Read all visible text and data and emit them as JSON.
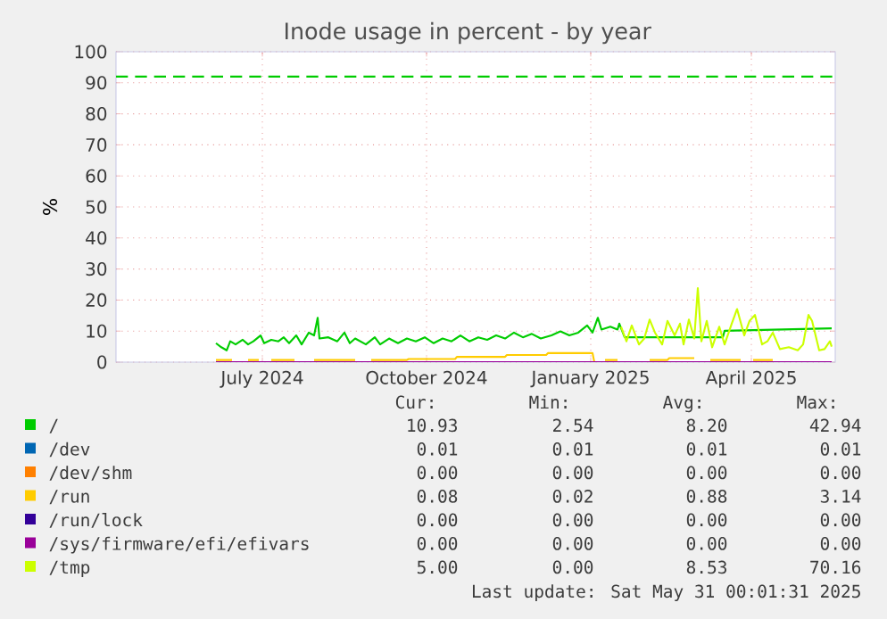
{
  "chart_data": {
    "type": "line",
    "title": "Inode usage in percent - by year",
    "ylabel": "%",
    "xlim": [
      "2024-04-25",
      "2025-06-02"
    ],
    "ylim": [
      0,
      100
    ],
    "xticks": [
      {
        "value": "2024-07-16",
        "label": "July 2024"
      },
      {
        "value": "2024-10-16",
        "label": "October 2024"
      },
      {
        "value": "2025-01-16",
        "label": "January 2025"
      },
      {
        "value": "2025-04-16",
        "label": "April 2025"
      }
    ],
    "yticks": [
      0,
      10,
      20,
      30,
      40,
      50,
      60,
      70,
      80,
      90,
      100
    ],
    "grid": true,
    "legend": "bottom",
    "ref_lines": [
      {
        "axis": "y",
        "value": 92,
        "color": "#00cc00",
        "line_style": "dashed"
      }
    ],
    "series": [
      {
        "name": "/",
        "color": "#00cc00",
        "x": [
          "2024-06-20",
          "2024-06-23",
          "2024-06-26",
          "2024-06-28",
          "2024-07-01",
          "2024-07-05",
          "2024-07-08",
          "2024-07-11",
          "2024-07-15",
          "2024-07-17",
          "2024-07-21",
          "2024-07-25",
          "2024-07-28",
          "2024-07-31",
          "2024-08-04",
          "2024-08-07",
          "2024-08-11",
          "2024-08-14",
          "2024-08-16",
          "2024-08-17",
          "2024-08-22",
          "2024-08-27",
          "2024-08-31",
          "2024-09-03",
          "2024-09-06",
          "2024-09-12",
          "2024-09-17",
          "2024-09-20",
          "2024-09-25",
          "2024-09-30",
          "2024-10-05",
          "2024-10-10",
          "2024-10-15",
          "2024-10-20",
          "2024-10-25",
          "2024-10-30",
          "2024-11-04",
          "2024-11-09",
          "2024-11-14",
          "2024-11-19",
          "2024-11-24",
          "2024-11-29",
          "2024-12-04",
          "2024-12-09",
          "2024-12-14",
          "2024-12-19",
          "2024-12-25",
          "2024-12-30",
          "2025-01-04",
          "2025-01-09",
          "2025-01-14",
          "2025-01-17",
          "2025-01-20",
          "2025-01-22",
          "2025-01-27",
          "2025-01-31",
          "2025-02-01",
          "2025-02-04",
          "2025-03-31",
          "2025-04-01",
          "2025-05-31"
        ],
        "values": [
          6.1,
          4.8,
          3.8,
          6.7,
          5.7,
          7.2,
          5.7,
          6.7,
          8.6,
          6.1,
          7.2,
          6.7,
          8,
          6.1,
          8.6,
          5.7,
          9.5,
          8.6,
          14.3,
          7.6,
          8,
          6.7,
          9.5,
          6.1,
          7.6,
          5.7,
          8,
          5.7,
          7.6,
          6.1,
          7.6,
          6.7,
          8,
          6.1,
          7.6,
          6.7,
          8.6,
          6.7,
          8,
          7.2,
          8.6,
          7.6,
          9.5,
          8,
          9.1,
          7.6,
          8.6,
          9.9,
          8.6,
          9.5,
          11.8,
          9.5,
          14.3,
          10.5,
          11.4,
          10.5,
          12.4,
          8,
          8,
          10.1,
          10.9
        ]
      },
      {
        "name": "/dev",
        "color": "#0066b3"
      },
      {
        "name": "/dev/shm",
        "color": "#ff8000"
      },
      {
        "name": "/run",
        "color": "#ffcc00",
        "x": [
          "2024-06-20",
          "2024-06-29",
          "2024-07-03",
          "2024-07-08",
          "2024-07-14",
          "2024-07-17",
          "2024-07-21",
          "2024-08-03",
          "2024-08-08",
          "2024-08-14",
          "2024-09-06",
          "2024-09-10",
          "2024-09-15",
          "2024-10-05",
          "2024-10-06",
          "2024-11-01",
          "2024-11-02",
          "2024-11-29",
          "2024-11-30",
          "2024-12-22",
          "2024-12-23",
          "2025-01-17",
          "2025-01-18",
          "2025-01-21",
          "2025-01-24",
          "2025-01-31",
          "2025-02-10",
          "2025-02-18",
          "2025-02-28",
          "2025-03-01",
          "2025-03-15",
          "2025-03-20",
          "2025-03-24",
          "2025-04-10",
          "2025-04-13",
          "2025-04-17",
          "2025-04-28"
        ],
        "values": [
          0.7,
          0.7,
          null,
          0.7,
          0.7,
          null,
          0.7,
          0.7,
          null,
          0.7,
          0.7,
          null,
          0.7,
          0.7,
          1.0,
          1.0,
          1.7,
          1.7,
          2.3,
          2.3,
          2.9,
          2.9,
          0,
          null,
          0.7,
          0.7,
          null,
          0.7,
          0.7,
          1.3,
          1.3,
          null,
          0.7,
          0.7,
          null,
          0.7,
          0.7
        ]
      },
      {
        "name": "/run/lock",
        "color": "#330099"
      },
      {
        "name": "/sys/firmware/efi/efivars",
        "color": "#990099",
        "x": [
          "2024-06-20",
          "2025-05-31"
        ],
        "values": [
          0,
          0
        ]
      },
      {
        "name": "/tmp",
        "color": "#ccff00",
        "x": [
          "2025-02-02",
          "2025-02-05",
          "2025-02-08",
          "2025-02-12",
          "2025-02-15",
          "2025-02-18",
          "2025-02-21",
          "2025-02-25",
          "2025-02-28",
          "2025-03-04",
          "2025-03-07",
          "2025-03-09",
          "2025-03-12",
          "2025-03-15",
          "2025-03-17",
          "2025-03-19",
          "2025-03-22",
          "2025-03-25",
          "2025-03-29",
          "2025-04-01",
          "2025-04-05",
          "2025-04-08",
          "2025-04-12",
          "2025-04-15",
          "2025-04-18",
          "2025-04-22",
          "2025-04-25",
          "2025-04-28",
          "2025-05-02",
          "2025-05-07",
          "2025-05-12",
          "2025-05-15",
          "2025-05-18",
          "2025-05-20",
          "2025-05-24",
          "2025-05-27",
          "2025-05-30",
          "2025-05-31"
        ],
        "values": [
          11.4,
          6.7,
          11.8,
          5.7,
          7.6,
          13.7,
          9.5,
          5.7,
          13.3,
          8.6,
          12.4,
          5.7,
          13.7,
          7.6,
          23.8,
          6.7,
          13.3,
          4.8,
          11.4,
          5.7,
          12.4,
          17.1,
          8.6,
          13.3,
          15.2,
          5.7,
          6.7,
          9.5,
          4.2,
          4.8,
          3.8,
          5.7,
          15.2,
          13.3,
          3.8,
          4.2,
          6.7,
          5.0
        ]
      }
    ],
    "annotations": [
      "Cur:",
      "Min:",
      "Avg:",
      "Max:",
      "10.93",
      "2.54",
      "8.20",
      "42.94",
      "0.01",
      "0.01",
      "0.01",
      "0.01",
      "0.00",
      "0.00",
      "0.00",
      "0.00",
      "0.08",
      "0.02",
      "0.88",
      "3.14",
      "0.00",
      "0.00",
      "0.00",
      "0.00",
      "0.00",
      "0.00",
      "0.00",
      "0.00",
      "5.00",
      "0.00",
      "8.53",
      "70.16",
      "Last update: Sat May 31 00:01:31 2025"
    ]
  }
}
